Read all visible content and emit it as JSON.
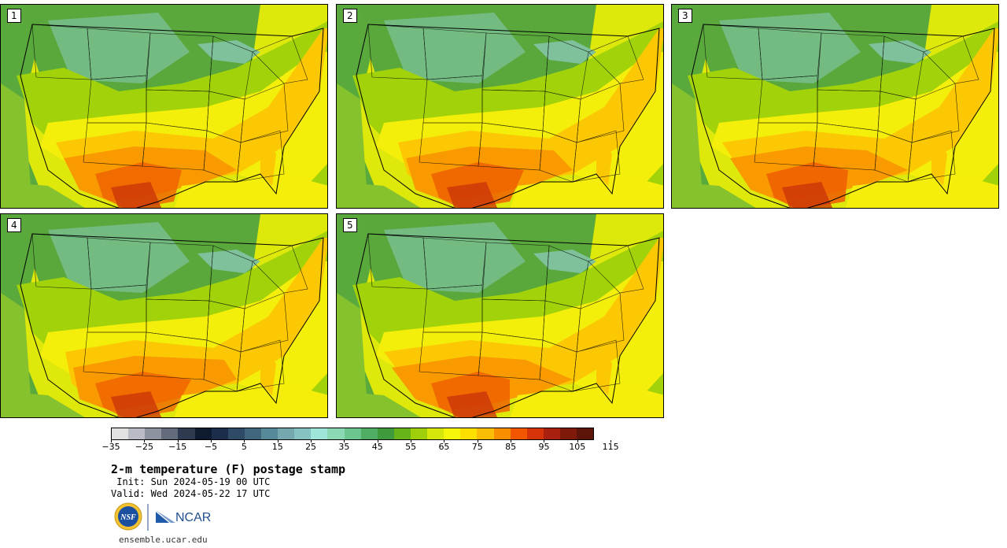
{
  "panels": [
    {
      "label": "1",
      "variant": 0
    },
    {
      "label": "2",
      "variant": 1
    },
    {
      "label": "3",
      "variant": 2
    },
    {
      "label": "4",
      "variant": 3
    },
    {
      "label": "5",
      "variant": 4
    }
  ],
  "colorbar": {
    "colors": [
      "#e1e1e1",
      "#b9bcc4",
      "#8e949f",
      "#646b7b",
      "#2f3a50",
      "#0d1a30",
      "#1b2d4a",
      "#2e4a66",
      "#41677f",
      "#568a98",
      "#74a8ae",
      "#86c2c2",
      "#a0e6d8",
      "#8bd8b4",
      "#6cc58f",
      "#4fae63",
      "#3e9a3c",
      "#66b417",
      "#9fcf0a",
      "#d5e60b",
      "#f6f60b",
      "#fde000",
      "#fbbd05",
      "#f88f00",
      "#f25600",
      "#d63408",
      "#a9200f",
      "#7f1a0b",
      "#5c1308"
    ],
    "ticks": [
      "−35",
      "−25",
      "−15",
      "−5",
      "5",
      "15",
      "25",
      "35",
      "45",
      "55",
      "65",
      "75",
      "85",
      "95",
      "105",
      "115"
    ]
  },
  "text": {
    "title": "2-m temperature (F) postage stamp",
    "init": " Init: Sun 2024-05-19 00 UTC",
    "valid": "Valid: Wed 2024-05-22 17 UTC",
    "site": "ensemble.ucar.edu",
    "nsf_logo": "NSF",
    "ncar_logo": "NCAR"
  }
}
